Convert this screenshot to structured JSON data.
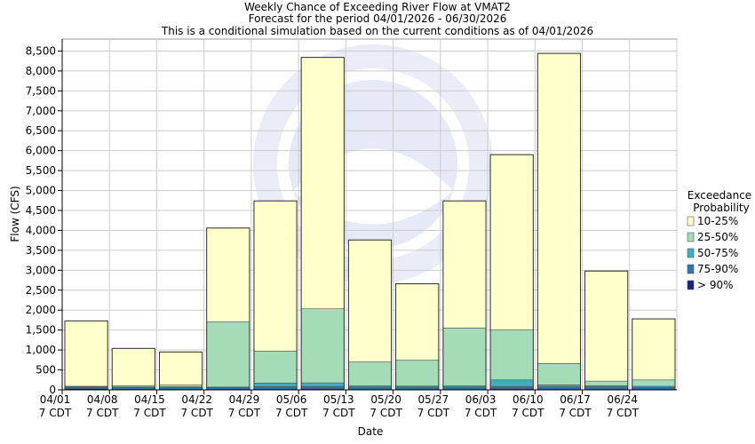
{
  "chart_data": {
    "type": "bar",
    "stacked": true,
    "title": "Weekly Chance of Exceeding River Flow at VMAT2",
    "subtitle": "Forecast for the period 04/01/2026 - 06/30/2026",
    "subtitle2": "This is a conditional simulation based on the current conditions as of 04/01/2026",
    "xlabel": "Date",
    "ylabel": "Flow (CFS)",
    "ylim": [
      0,
      8800
    ],
    "yticks": [
      0,
      500,
      1000,
      1500,
      2000,
      2500,
      3000,
      3500,
      4000,
      4500,
      5000,
      5500,
      6000,
      6500,
      7000,
      7500,
      8000,
      8500
    ],
    "ytick_labels": [
      "0",
      "500",
      "1,000",
      "1,500",
      "2,000",
      "2,500",
      "3,000",
      "3,500",
      "4,000",
      "4,500",
      "5,000",
      "5,500",
      "6,000",
      "6,500",
      "7,000",
      "7,500",
      "8,000",
      "8,500"
    ],
    "categories": [
      "04/01",
      "04/08",
      "04/15",
      "04/22",
      "04/29",
      "05/06",
      "05/13",
      "05/20",
      "05/27",
      "06/03",
      "06/10",
      "06/17",
      "06/24"
    ],
    "category_sublabel": "7 CDT",
    "grid": true,
    "legend_title": [
      "Exceedance",
      "Probability"
    ],
    "legend_position": "right",
    "series": [
      {
        "name": "> 90%",
        "color": "#1a237e",
        "values": [
          30,
          20,
          20,
          20,
          20,
          25,
          20,
          20,
          20,
          25,
          20,
          20,
          15
        ]
      },
      {
        "name": "75-90%",
        "color": "#2b74b8",
        "values": [
          50,
          40,
          45,
          40,
          60,
          60,
          50,
          50,
          50,
          60,
          55,
          55,
          45
        ]
      },
      {
        "name": "50-75%",
        "color": "#41aec0",
        "values": [
          5,
          10,
          10,
          10,
          90,
          90,
          30,
          25,
          30,
          165,
          50,
          30,
          30
        ]
      },
      {
        "name": "25-50%",
        "color": "#a3dcb6",
        "values": [
          5,
          30,
          45,
          1640,
          800,
          1860,
          600,
          650,
          1450,
          1260,
          535,
          115,
          160
        ]
      },
      {
        "name": "10-25%",
        "color": "#ffffcc",
        "values": [
          1640,
          940,
          830,
          2350,
          3770,
          6305,
          3060,
          1915,
          3190,
          4390,
          7780,
          2760,
          1530
        ]
      }
    ]
  }
}
